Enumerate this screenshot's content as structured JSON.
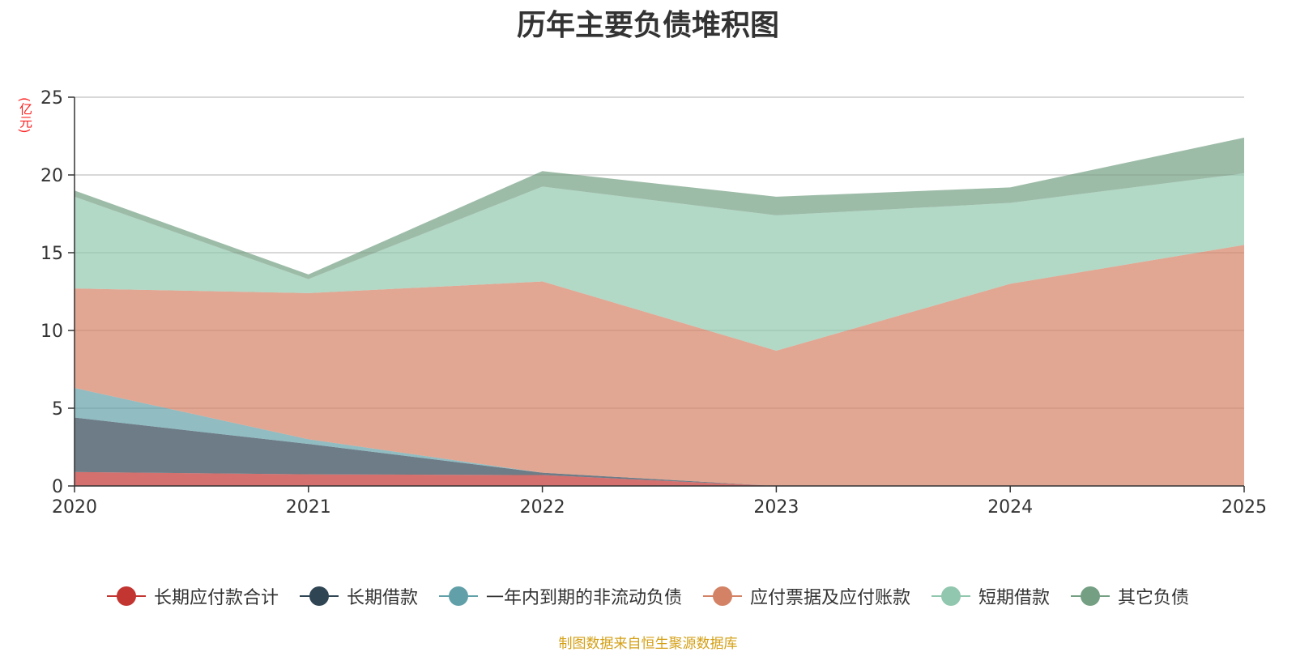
{
  "chart_data": {
    "type": "area",
    "stacked": true,
    "title": "历年主要负债堆积图",
    "ylabel": "(亿元)",
    "xlabel": "",
    "x": [
      "2020",
      "2021",
      "2022",
      "2023",
      "2024",
      "2025"
    ],
    "ylim": [
      0,
      25
    ],
    "yticks": [
      0,
      5,
      10,
      15,
      20,
      25
    ],
    "grid": true,
    "legend_position": "bottom",
    "series": [
      {
        "name": "长期应付款合计",
        "color": "#c23531",
        "values": [
          0.9,
          0.75,
          0.7,
          0.0,
          0.0,
          0.0
        ]
      },
      {
        "name": "长期借款",
        "color": "#2f4554",
        "values": [
          3.5,
          1.95,
          0.15,
          0.0,
          0.0,
          0.0
        ]
      },
      {
        "name": "一年内到期的非流动负债",
        "color": "#61a0a8",
        "values": [
          1.9,
          0.3,
          0.0,
          0.0,
          0.0,
          0.0
        ]
      },
      {
        "name": "应付票据及应付账款",
        "color": "#d48265",
        "values": [
          6.4,
          9.4,
          12.3,
          8.7,
          13.0,
          15.5
        ]
      },
      {
        "name": "短期借款",
        "color": "#91c7ae",
        "values": [
          5.9,
          0.9,
          6.1,
          8.7,
          5.2,
          4.6
        ]
      },
      {
        "name": "其它负债",
        "color": "#749f83",
        "values": [
          0.4,
          0.3,
          1.0,
          1.2,
          1.0,
          2.3
        ]
      }
    ]
  },
  "footer": {
    "source": "制图数据来自恒生聚源数据库"
  }
}
